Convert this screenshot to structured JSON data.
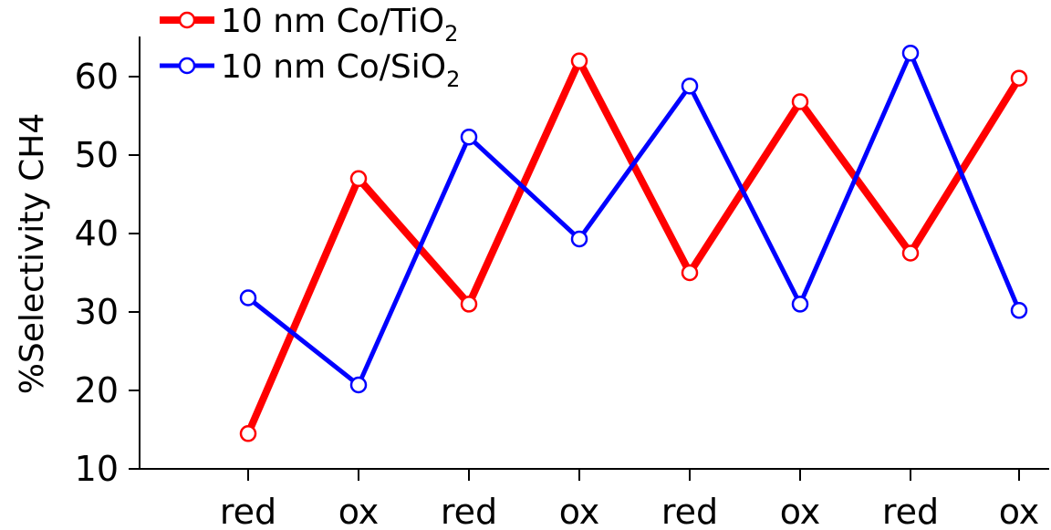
{
  "chart_data": {
    "type": "line",
    "categories": [
      "red",
      "ox",
      "red",
      "ox",
      "red",
      "ox",
      "red",
      "ox"
    ],
    "ylabel": "%Selectivity CH4",
    "xlabel": "",
    "ylim": [
      10,
      65
    ],
    "yticks": [
      10,
      20,
      30,
      40,
      50,
      60
    ],
    "grid": false,
    "legend_position": "top-left",
    "series": [
      {
        "name": "10 nm Co/TiO",
        "name_subscript": "2",
        "color": "#ff0000",
        "values": [
          14.5,
          47,
          31,
          62,
          35,
          56.8,
          37.5,
          59.8
        ]
      },
      {
        "name": "10 nm Co/SiO",
        "name_subscript": "2",
        "color": "#0000ff",
        "values": [
          31.8,
          20.7,
          52.3,
          39.3,
          58.8,
          31,
          63,
          30.2
        ]
      }
    ]
  }
}
